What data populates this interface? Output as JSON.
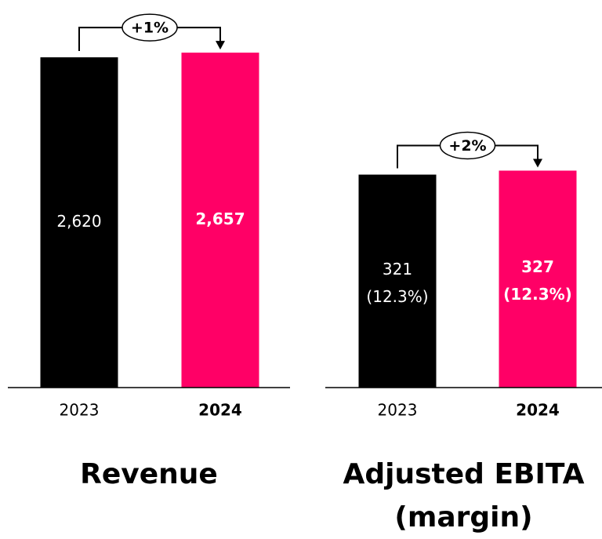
{
  "chart_data": [
    {
      "type": "bar",
      "title": "Revenue",
      "categories": [
        "2023",
        "2024"
      ],
      "values": [
        2620,
        2657
      ],
      "value_labels": [
        "2,620",
        "2,657"
      ],
      "colors": [
        "#000000",
        "#ff0066"
      ],
      "ylim": [
        0,
        3000
      ],
      "annotation": "+1%"
    },
    {
      "type": "bar",
      "title": "Adjusted EBITA (margin)",
      "categories": [
        "2023",
        "2024"
      ],
      "values": [
        321,
        327
      ],
      "value_labels": [
        "321",
        "327"
      ],
      "margins": [
        12.3,
        12.3
      ],
      "margin_labels": [
        "(12.3%)",
        "(12.3%)"
      ],
      "colors": [
        "#000000",
        "#ff0066"
      ],
      "ylim": [
        0,
        570
      ],
      "annotation": "+2%"
    }
  ]
}
